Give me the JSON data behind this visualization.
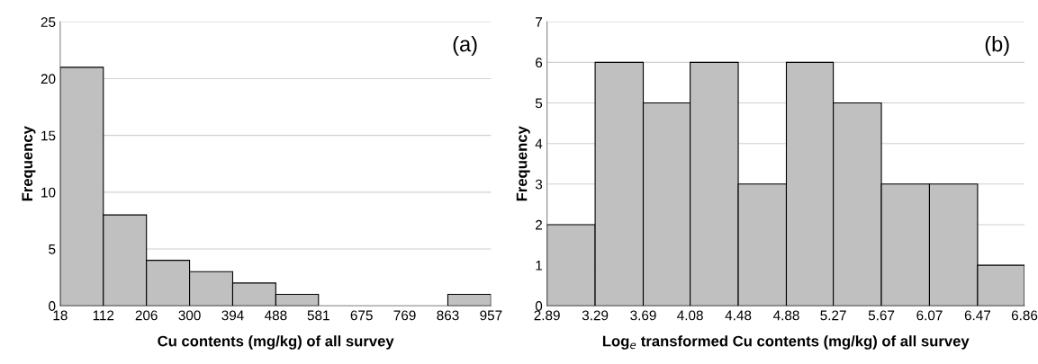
{
  "chart_data": [
    {
      "type": "histogram",
      "bins": [
        18,
        112,
        206,
        300,
        394,
        488,
        581,
        675,
        769,
        863,
        957
      ],
      "values": [
        21,
        8,
        4,
        3,
        2,
        1,
        0,
        0,
        0,
        1
      ],
      "color": "#c0c0c0",
      "xlim": [
        18,
        957
      ],
      "xticks": [
        18,
        112,
        206,
        300,
        394,
        488,
        581,
        675,
        769,
        863,
        957
      ],
      "ylim": [
        0,
        25
      ],
      "yticks": [
        0,
        5,
        10,
        15,
        20,
        25
      ],
      "grid": "y",
      "xlabel": "Cu contents (mg/kg) of all survey",
      "ylabel": "Frequency",
      "annotations": [
        "(a)"
      ]
    },
    {
      "type": "histogram",
      "bins": [
        2.89,
        3.29,
        3.69,
        4.08,
        4.48,
        4.88,
        5.27,
        5.67,
        6.07,
        6.47,
        6.86
      ],
      "values": [
        2,
        6,
        5,
        6,
        3,
        6,
        5,
        3,
        3,
        1
      ],
      "color": "#c0c0c0",
      "xlim": [
        2.89,
        6.86
      ],
      "xticks": [
        2.89,
        3.29,
        3.69,
        4.08,
        4.48,
        4.88,
        5.27,
        5.67,
        6.07,
        6.47,
        6.86
      ],
      "ylim": [
        0,
        7
      ],
      "yticks": [
        0,
        1,
        2,
        3,
        4,
        5,
        6,
        7
      ],
      "grid": "y",
      "xlabel": "Log$_{e}$ transformed Cu contents (mg/kg) of all survey",
      "ylabel": "Frequency",
      "annotations": [
        "(b)"
      ]
    }
  ]
}
